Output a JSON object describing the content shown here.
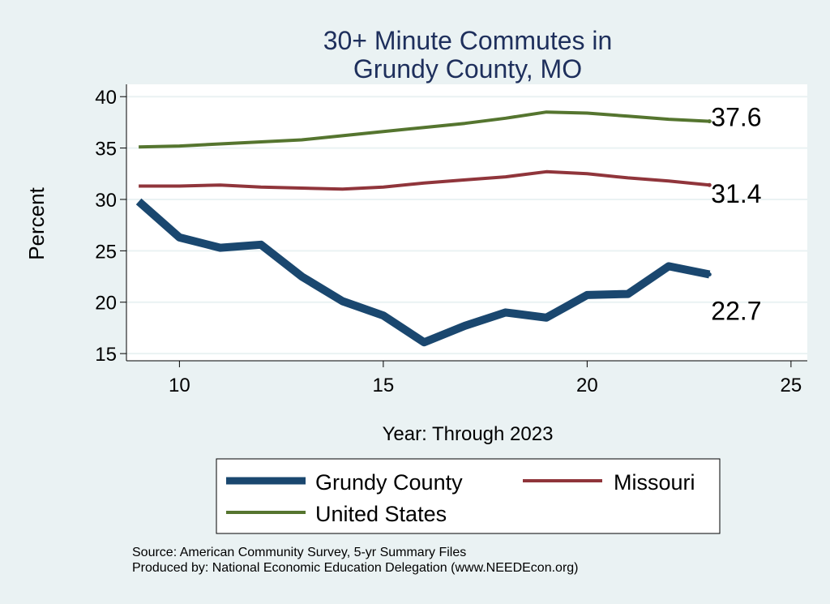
{
  "chart_data": {
    "type": "line",
    "title_lines": [
      "30+ Minute Commutes in",
      "Grundy County, MO"
    ],
    "xlabel": "Year: Through 2023",
    "ylabel": "Percent",
    "xlim": [
      8.7,
      25.4
    ],
    "ylim": [
      14.3,
      41.2
    ],
    "xticks": [
      10,
      15,
      20,
      25
    ],
    "yticks": [
      15,
      20,
      25,
      30,
      35,
      40
    ],
    "grid": true,
    "series": [
      {
        "name": "Grundy County",
        "color": "#1a476f",
        "x": [
          9,
          10,
          11,
          12,
          13,
          14,
          15,
          16,
          17,
          18,
          19,
          20,
          21,
          22,
          23
        ],
        "values": [
          29.8,
          26.3,
          25.3,
          25.6,
          22.5,
          20.1,
          18.7,
          16.1,
          17.7,
          19.0,
          18.5,
          20.7,
          20.8,
          23.5,
          22.7
        ],
        "end_label": "22.7"
      },
      {
        "name": "Missouri",
        "color": "#90353b",
        "x": [
          9,
          10,
          11,
          12,
          13,
          14,
          15,
          16,
          17,
          18,
          19,
          20,
          21,
          22,
          23
        ],
        "values": [
          31.3,
          31.3,
          31.4,
          31.2,
          31.1,
          31.0,
          31.2,
          31.6,
          31.9,
          32.2,
          32.7,
          32.5,
          32.1,
          31.8,
          31.4
        ],
        "end_label": "31.4"
      },
      {
        "name": "United States",
        "color": "#55752f",
        "x": [
          9,
          10,
          11,
          12,
          13,
          14,
          15,
          16,
          17,
          18,
          19,
          20,
          21,
          22,
          23
        ],
        "values": [
          35.1,
          35.2,
          35.4,
          35.6,
          35.8,
          36.2,
          36.6,
          37.0,
          37.4,
          37.9,
          38.5,
          38.4,
          38.1,
          37.8,
          37.6
        ],
        "end_label": "37.6"
      }
    ],
    "legend": {
      "placement": "bottom",
      "entries": [
        "Grundy County",
        "Missouri",
        "United States"
      ]
    }
  },
  "footer": {
    "source": "Source: American Community Survey, 5-yr Summary Files",
    "produced_by": "Produced by: National Economic Education Delegation (www.NEEDEcon.org)"
  }
}
